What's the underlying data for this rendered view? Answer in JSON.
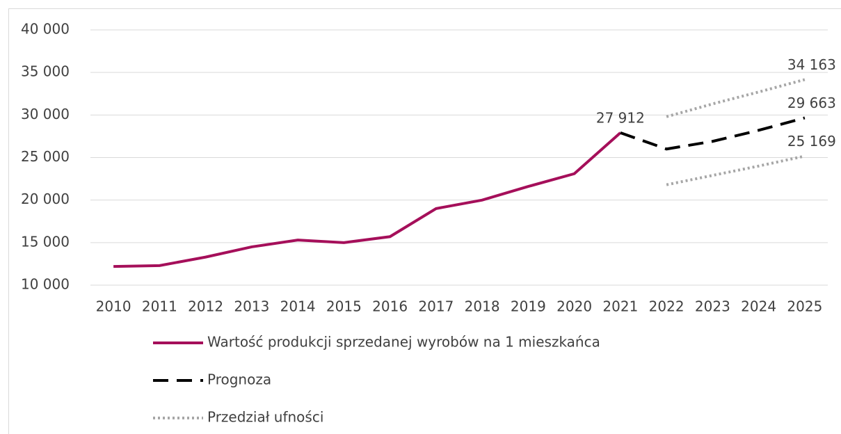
{
  "chart_data": {
    "type": "line",
    "categories": [
      "2010",
      "2011",
      "2012",
      "2013",
      "2014",
      "2015",
      "2016",
      "2017",
      "2018",
      "2019",
      "2020",
      "2021",
      "2022",
      "2023",
      "2024",
      "2025"
    ],
    "series": [
      {
        "name": "Wartość produkcji sprzedanej wyrobów na 1 mieszkańca",
        "color": "#a50f5a",
        "style": "solid",
        "values": [
          12200,
          12300,
          13300,
          14500,
          15300,
          15000,
          15700,
          19000,
          20000,
          21600,
          23100,
          27912,
          null,
          null,
          null,
          null
        ],
        "value_labels": [
          null,
          null,
          null,
          null,
          null,
          null,
          null,
          null,
          null,
          null,
          null,
          "27 912",
          null,
          null,
          null,
          null
        ]
      },
      {
        "name": "Prognoza",
        "color": "#000000",
        "style": "dashed",
        "values": [
          null,
          null,
          null,
          null,
          null,
          null,
          null,
          null,
          null,
          null,
          null,
          27912,
          26000,
          26900,
          28200,
          29663
        ],
        "value_labels": [
          null,
          null,
          null,
          null,
          null,
          null,
          null,
          null,
          null,
          null,
          null,
          null,
          null,
          null,
          null,
          "29 663"
        ]
      },
      {
        "name": "Przedział ufności",
        "color": "#a6a6a6",
        "style": "dotted",
        "values": [
          null,
          null,
          null,
          null,
          null,
          null,
          null,
          null,
          null,
          null,
          null,
          null,
          29800,
          31300,
          32700,
          34163
        ],
        "value_labels": [
          null,
          null,
          null,
          null,
          null,
          null,
          null,
          null,
          null,
          null,
          null,
          null,
          null,
          null,
          null,
          "34 163"
        ],
        "values_lower": [
          null,
          null,
          null,
          null,
          null,
          null,
          null,
          null,
          null,
          null,
          null,
          null,
          21800,
          22900,
          24000,
          25169
        ],
        "value_labels_lower": [
          null,
          null,
          null,
          null,
          null,
          null,
          null,
          null,
          null,
          null,
          null,
          null,
          null,
          null,
          null,
          "25 169"
        ]
      }
    ],
    "ylim": [
      10000,
      40000
    ],
    "yticks": [
      {
        "value": 10000,
        "label": "10 000"
      },
      {
        "value": 15000,
        "label": "15 000"
      },
      {
        "value": 20000,
        "label": "20 000"
      },
      {
        "value": 25000,
        "label": "25 000"
      },
      {
        "value": 30000,
        "label": "30 000"
      },
      {
        "value": 35000,
        "label": "35 000"
      },
      {
        "value": 40000,
        "label": "40 000"
      }
    ],
    "grid": true,
    "legend": "bottom"
  }
}
